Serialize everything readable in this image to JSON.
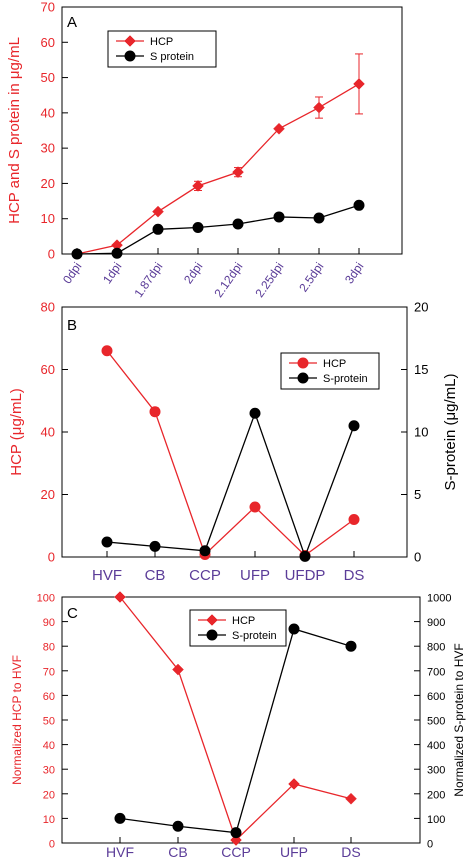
{
  "chart_data": [
    {
      "type": "line",
      "panel_label": "A",
      "ylabel": "HCP and S protein in μg/mL",
      "categories": [
        "0dpi",
        "1dpi",
        "1.87dpi",
        "2dpi",
        "2.12dpi",
        "2.25dpi",
        "2.5dpi",
        "3dpi"
      ],
      "ylim": [
        0,
        70
      ],
      "yticks": [
        "0",
        "10",
        "20",
        "30",
        "40",
        "50",
        "60",
        "70"
      ],
      "legend_position": "top-left",
      "series": [
        {
          "name": "HCP",
          "color": "#e8262b",
          "marker": "diamond",
          "values": [
            0,
            2.5,
            12,
            19.3,
            23.2,
            35.5,
            41.5,
            48.2
          ],
          "error": [
            0,
            0,
            0,
            1.3,
            1.3,
            0,
            3,
            8.5
          ]
        },
        {
          "name": "S protein",
          "color": "#000000",
          "marker": "circle",
          "values": [
            0,
            0.2,
            7,
            7.5,
            8.5,
            10.5,
            10.2,
            13.8
          ]
        }
      ]
    },
    {
      "type": "line",
      "panel_label": "B",
      "ylabel": "HCP (μg/mL)",
      "y2label": "S-protein (μg/mL)",
      "categories": [
        "HVF",
        "CB",
        "CCP",
        "UFP",
        "UFDP",
        "DS"
      ],
      "ylim": [
        0,
        80
      ],
      "yticks": [
        "0",
        "20",
        "40",
        "60",
        "80"
      ],
      "y2lim": [
        0,
        20
      ],
      "y2ticks": [
        "0",
        "5",
        "10",
        "15",
        "20"
      ],
      "legend_position": "top-right",
      "series": [
        {
          "name": "HCP",
          "axis": "left",
          "color": "#e8262b",
          "marker": "circle",
          "values": [
            66,
            46.5,
            0.8,
            16,
            0.5,
            12
          ],
          "error": [
            0,
            1.2,
            0,
            0,
            0,
            0
          ]
        },
        {
          "name": "S-protein",
          "axis": "right",
          "color": "#000000",
          "marker": "circle",
          "values": [
            1.2,
            0.85,
            0.5,
            11.5,
            0.05,
            10.5
          ]
        }
      ]
    },
    {
      "type": "line",
      "panel_label": "C",
      "ylabel": "Normalized HCP to HVF",
      "y2label": "Normalized S-protein to HVF",
      "categories": [
        "HVF",
        "CB",
        "CCP",
        "UFP",
        "DS"
      ],
      "ylim": [
        0,
        100
      ],
      "yticks": [
        "0",
        "10",
        "20",
        "30",
        "40",
        "50",
        "60",
        "70",
        "80",
        "90",
        "100"
      ],
      "y2lim": [
        0,
        1000
      ],
      "y2ticks": [
        "0",
        "100",
        "200",
        "300",
        "400",
        "500",
        "600",
        "700",
        "800",
        "900",
        "1000"
      ],
      "legend_position": "top-center",
      "series": [
        {
          "name": "HCP",
          "axis": "left",
          "color": "#e8262b",
          "marker": "diamond",
          "values": [
            100,
            70.5,
            1.2,
            24,
            18
          ]
        },
        {
          "name": "S-protein",
          "axis": "right",
          "color": "#000000",
          "marker": "circle",
          "values": [
            100,
            68,
            42,
            870,
            800
          ]
        }
      ]
    }
  ]
}
